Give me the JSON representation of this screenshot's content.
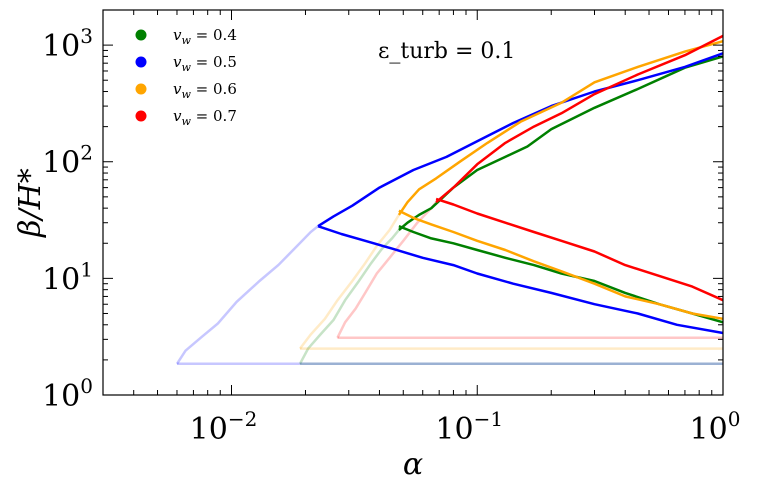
{
  "chart_data": {
    "type": "line",
    "title": "",
    "annotation": "ε_turb = 0.1",
    "xlabel": "α",
    "ylabel": "β/H*",
    "xscale": "log",
    "yscale": "log",
    "xlim": [
      0.003,
      1.0
    ],
    "ylim": [
      1.0,
      2000
    ],
    "xticks": [
      {
        "value": 0.01,
        "base": "10",
        "exp": "−2"
      },
      {
        "value": 0.1,
        "base": "10",
        "exp": "−1"
      },
      {
        "value": 1.0,
        "base": "10",
        "exp": "0"
      }
    ],
    "yticks": [
      {
        "value": 1,
        "base": "10",
        "exp": "0"
      },
      {
        "value": 10,
        "base": "10",
        "exp": "1"
      },
      {
        "value": 100,
        "base": "10",
        "exp": "2"
      },
      {
        "value": 1000,
        "base": "10",
        "exp": "3"
      }
    ],
    "grid": false,
    "legend_position": "top-left",
    "series": [
      {
        "name": "v_w = 0.4",
        "label": "v",
        "label_sub": "w",
        "label_rest": " = 0.4",
        "color": "#008000",
        "faint": [
          [
            0.019,
            1.85
          ],
          [
            0.0205,
            2.5
          ],
          [
            0.023,
            3.3
          ],
          [
            0.026,
            4.4
          ],
          [
            0.029,
            6.5
          ],
          [
            0.033,
            9.5
          ],
          [
            0.037,
            13.5
          ],
          [
            0.041,
            18
          ],
          [
            0.045,
            22
          ],
          [
            0.048,
            26
          ]
        ],
        "upper": [
          [
            0.048,
            26
          ],
          [
            0.052,
            30
          ],
          [
            0.058,
            35
          ],
          [
            0.065,
            40
          ],
          [
            0.08,
            60
          ],
          [
            0.1,
            85
          ],
          [
            0.13,
            110
          ],
          [
            0.16,
            135
          ],
          [
            0.2,
            190
          ],
          [
            0.3,
            290
          ],
          [
            0.45,
            420
          ],
          [
            0.7,
            640
          ],
          [
            1.0,
            800
          ]
        ],
        "lower": [
          [
            0.048,
            28
          ],
          [
            0.055,
            25
          ],
          [
            0.065,
            22
          ],
          [
            0.08,
            20
          ],
          [
            0.1,
            17.5
          ],
          [
            0.13,
            15
          ],
          [
            0.17,
            13
          ],
          [
            0.22,
            11
          ],
          [
            0.3,
            9.5
          ],
          [
            0.4,
            7.5
          ],
          [
            0.55,
            6
          ],
          [
            0.75,
            5
          ],
          [
            1.0,
            4.2
          ]
        ],
        "floor": [
          [
            0.019,
            1.85
          ],
          [
            1.0,
            1.85
          ]
        ]
      },
      {
        "name": "v_w = 0.5",
        "label": "v",
        "label_sub": "w",
        "label_rest": " = 0.5",
        "color": "#0000ff",
        "faint": [
          [
            0.006,
            1.85
          ],
          [
            0.0065,
            2.4
          ],
          [
            0.0075,
            3.1
          ],
          [
            0.0088,
            4.1
          ],
          [
            0.0105,
            6.3
          ],
          [
            0.013,
            9.5
          ],
          [
            0.0155,
            13
          ],
          [
            0.0185,
            19
          ],
          [
            0.021,
            25
          ],
          [
            0.0225,
            28
          ]
        ],
        "upper": [
          [
            0.0225,
            28
          ],
          [
            0.026,
            34
          ],
          [
            0.031,
            42
          ],
          [
            0.04,
            60
          ],
          [
            0.055,
            85
          ],
          [
            0.075,
            110
          ],
          [
            0.1,
            150
          ],
          [
            0.14,
            215
          ],
          [
            0.2,
            300
          ],
          [
            0.3,
            400
          ],
          [
            0.45,
            500
          ],
          [
            0.7,
            650
          ],
          [
            1.0,
            850
          ]
        ],
        "lower": [
          [
            0.0225,
            28
          ],
          [
            0.028,
            24
          ],
          [
            0.035,
            21
          ],
          [
            0.045,
            18
          ],
          [
            0.06,
            15
          ],
          [
            0.08,
            13
          ],
          [
            0.1,
            11
          ],
          [
            0.14,
            9
          ],
          [
            0.2,
            7.5
          ],
          [
            0.3,
            6
          ],
          [
            0.45,
            5
          ],
          [
            0.65,
            4
          ],
          [
            1.0,
            3.4
          ]
        ],
        "floor": [
          [
            0.006,
            1.85
          ],
          [
            1.0,
            1.85
          ]
        ]
      },
      {
        "name": "v_w = 0.6",
        "label": "v",
        "label_sub": "w",
        "label_rest": " = 0.6",
        "color": "#ffa500",
        "faint": [
          [
            0.019,
            2.5
          ],
          [
            0.021,
            3.3
          ],
          [
            0.024,
            4.5
          ],
          [
            0.027,
            6.5
          ],
          [
            0.031,
            9.5
          ],
          [
            0.035,
            13.5
          ],
          [
            0.039,
            19
          ],
          [
            0.044,
            26
          ],
          [
            0.048,
            35
          ]
        ],
        "upper": [
          [
            0.048,
            35
          ],
          [
            0.052,
            45
          ],
          [
            0.058,
            58
          ],
          [
            0.068,
            72
          ],
          [
            0.085,
            100
          ],
          [
            0.11,
            145
          ],
          [
            0.15,
            220
          ],
          [
            0.22,
            320
          ],
          [
            0.3,
            480
          ],
          [
            0.45,
            650
          ],
          [
            0.7,
            880
          ],
          [
            1.0,
            1080
          ]
        ],
        "lower": [
          [
            0.048,
            38
          ],
          [
            0.055,
            33
          ],
          [
            0.065,
            29
          ],
          [
            0.08,
            25
          ],
          [
            0.1,
            21
          ],
          [
            0.13,
            17.5
          ],
          [
            0.17,
            14
          ],
          [
            0.22,
            11.5
          ],
          [
            0.3,
            9
          ],
          [
            0.4,
            7
          ],
          [
            0.55,
            6
          ],
          [
            0.75,
            5
          ],
          [
            1.0,
            4.5
          ]
        ],
        "floor": [
          [
            0.019,
            2.5
          ],
          [
            1.0,
            2.5
          ]
        ]
      },
      {
        "name": "v_w = 0.7",
        "label": "v",
        "label_sub": "w",
        "label_rest": " = 0.7",
        "color": "#ff0000",
        "faint": [
          [
            0.027,
            3.1
          ],
          [
            0.029,
            4.2
          ],
          [
            0.032,
            5.5
          ],
          [
            0.035,
            7.5
          ],
          [
            0.039,
            11
          ],
          [
            0.044,
            15
          ],
          [
            0.05,
            21
          ],
          [
            0.057,
            30
          ],
          [
            0.065,
            40
          ],
          [
            0.068,
            45
          ]
        ],
        "upper": [
          [
            0.068,
            45
          ],
          [
            0.08,
            60
          ],
          [
            0.1,
            95
          ],
          [
            0.13,
            145
          ],
          [
            0.17,
            200
          ],
          [
            0.22,
            260
          ],
          [
            0.3,
            380
          ],
          [
            0.45,
            560
          ],
          [
            0.7,
            820
          ],
          [
            1.0,
            1200
          ]
        ],
        "lower": [
          [
            0.068,
            48
          ],
          [
            0.08,
            43
          ],
          [
            0.1,
            36
          ],
          [
            0.13,
            30
          ],
          [
            0.17,
            25
          ],
          [
            0.22,
            21
          ],
          [
            0.3,
            17
          ],
          [
            0.4,
            13
          ],
          [
            0.55,
            10.5
          ],
          [
            0.75,
            8.5
          ],
          [
            1.0,
            6.5
          ]
        ],
        "floor": [
          [
            0.027,
            3.1
          ],
          [
            1.0,
            3.1
          ]
        ]
      }
    ]
  }
}
